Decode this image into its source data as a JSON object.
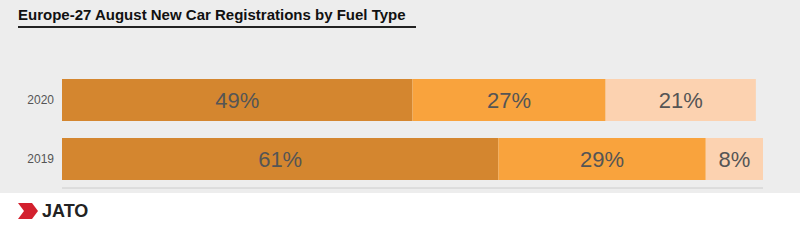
{
  "chart_data": {
    "type": "bar",
    "title": "Europe-27 August New Car Registrations by Fuel Type",
    "annotations": [
      "JATO"
    ],
    "orientation": "horizontal",
    "stacked": true,
    "data_labels": true,
    "tick_labels": "y",
    "grid": false,
    "categories": [
      "2020",
      "2019"
    ],
    "xlim": [
      0,
      98
    ],
    "series": [
      {
        "color": "#d4862f",
        "values": [
          49,
          61
        ],
        "value_labels": [
          "49%",
          "61%"
        ]
      },
      {
        "color": "#f9a33d",
        "values": [
          27,
          29
        ],
        "value_labels": [
          "27%",
          "29%"
        ]
      },
      {
        "color": "#fcd2b0",
        "values": [
          21,
          8
        ],
        "value_labels": [
          "21%",
          "8%"
        ]
      }
    ]
  }
}
